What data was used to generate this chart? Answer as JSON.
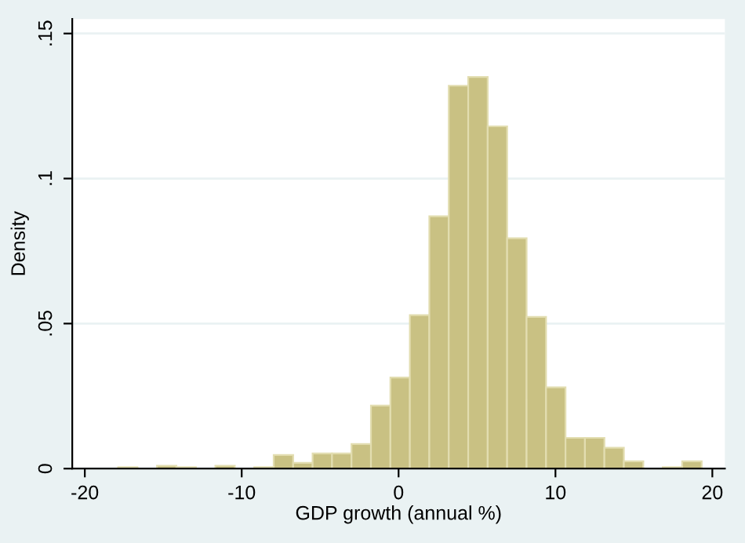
{
  "chart_data": {
    "type": "histogram",
    "xlabel": "GDP growth (annual %)",
    "ylabel": "Density",
    "bins": [
      -17.88,
      -16.64,
      -15.4,
      -14.16,
      -12.92,
      -11.68,
      -10.44,
      -9.2,
      -7.96,
      -6.72,
      -5.48,
      -4.24,
      -3.0,
      -1.76,
      -0.52,
      0.72,
      1.96,
      3.2,
      4.44,
      5.68,
      6.92,
      8.16,
      9.4,
      10.64,
      11.88,
      13.12,
      14.36,
      15.6,
      16.84,
      18.08,
      19.32
    ],
    "values": [
      0.0005,
      0,
      0.001,
      0.0005,
      0,
      0.001,
      0,
      0.0005,
      0.0047,
      0.002,
      0.0052,
      0.0052,
      0.0085,
      0.0217,
      0.0314,
      0.0529,
      0.087,
      0.132,
      0.135,
      0.118,
      0.0794,
      0.0523,
      0.028,
      0.0106,
      0.0106,
      0.0072,
      0.0025,
      0,
      0.0005,
      0.0025
    ],
    "color": "#c9c183",
    "xlim": [
      -20.8,
      20.8
    ],
    "ylim": [
      0,
      0.155
    ],
    "xticks": [
      -20,
      -10,
      0,
      10,
      20
    ],
    "yticks": [
      {
        "value": 0,
        "label": "0"
      },
      {
        "value": 0.05,
        "label": ".05"
      },
      {
        "value": 0.1,
        "label": ".1"
      },
      {
        "value": 0.15,
        "label": ".15"
      }
    ],
    "grid": "y"
  }
}
